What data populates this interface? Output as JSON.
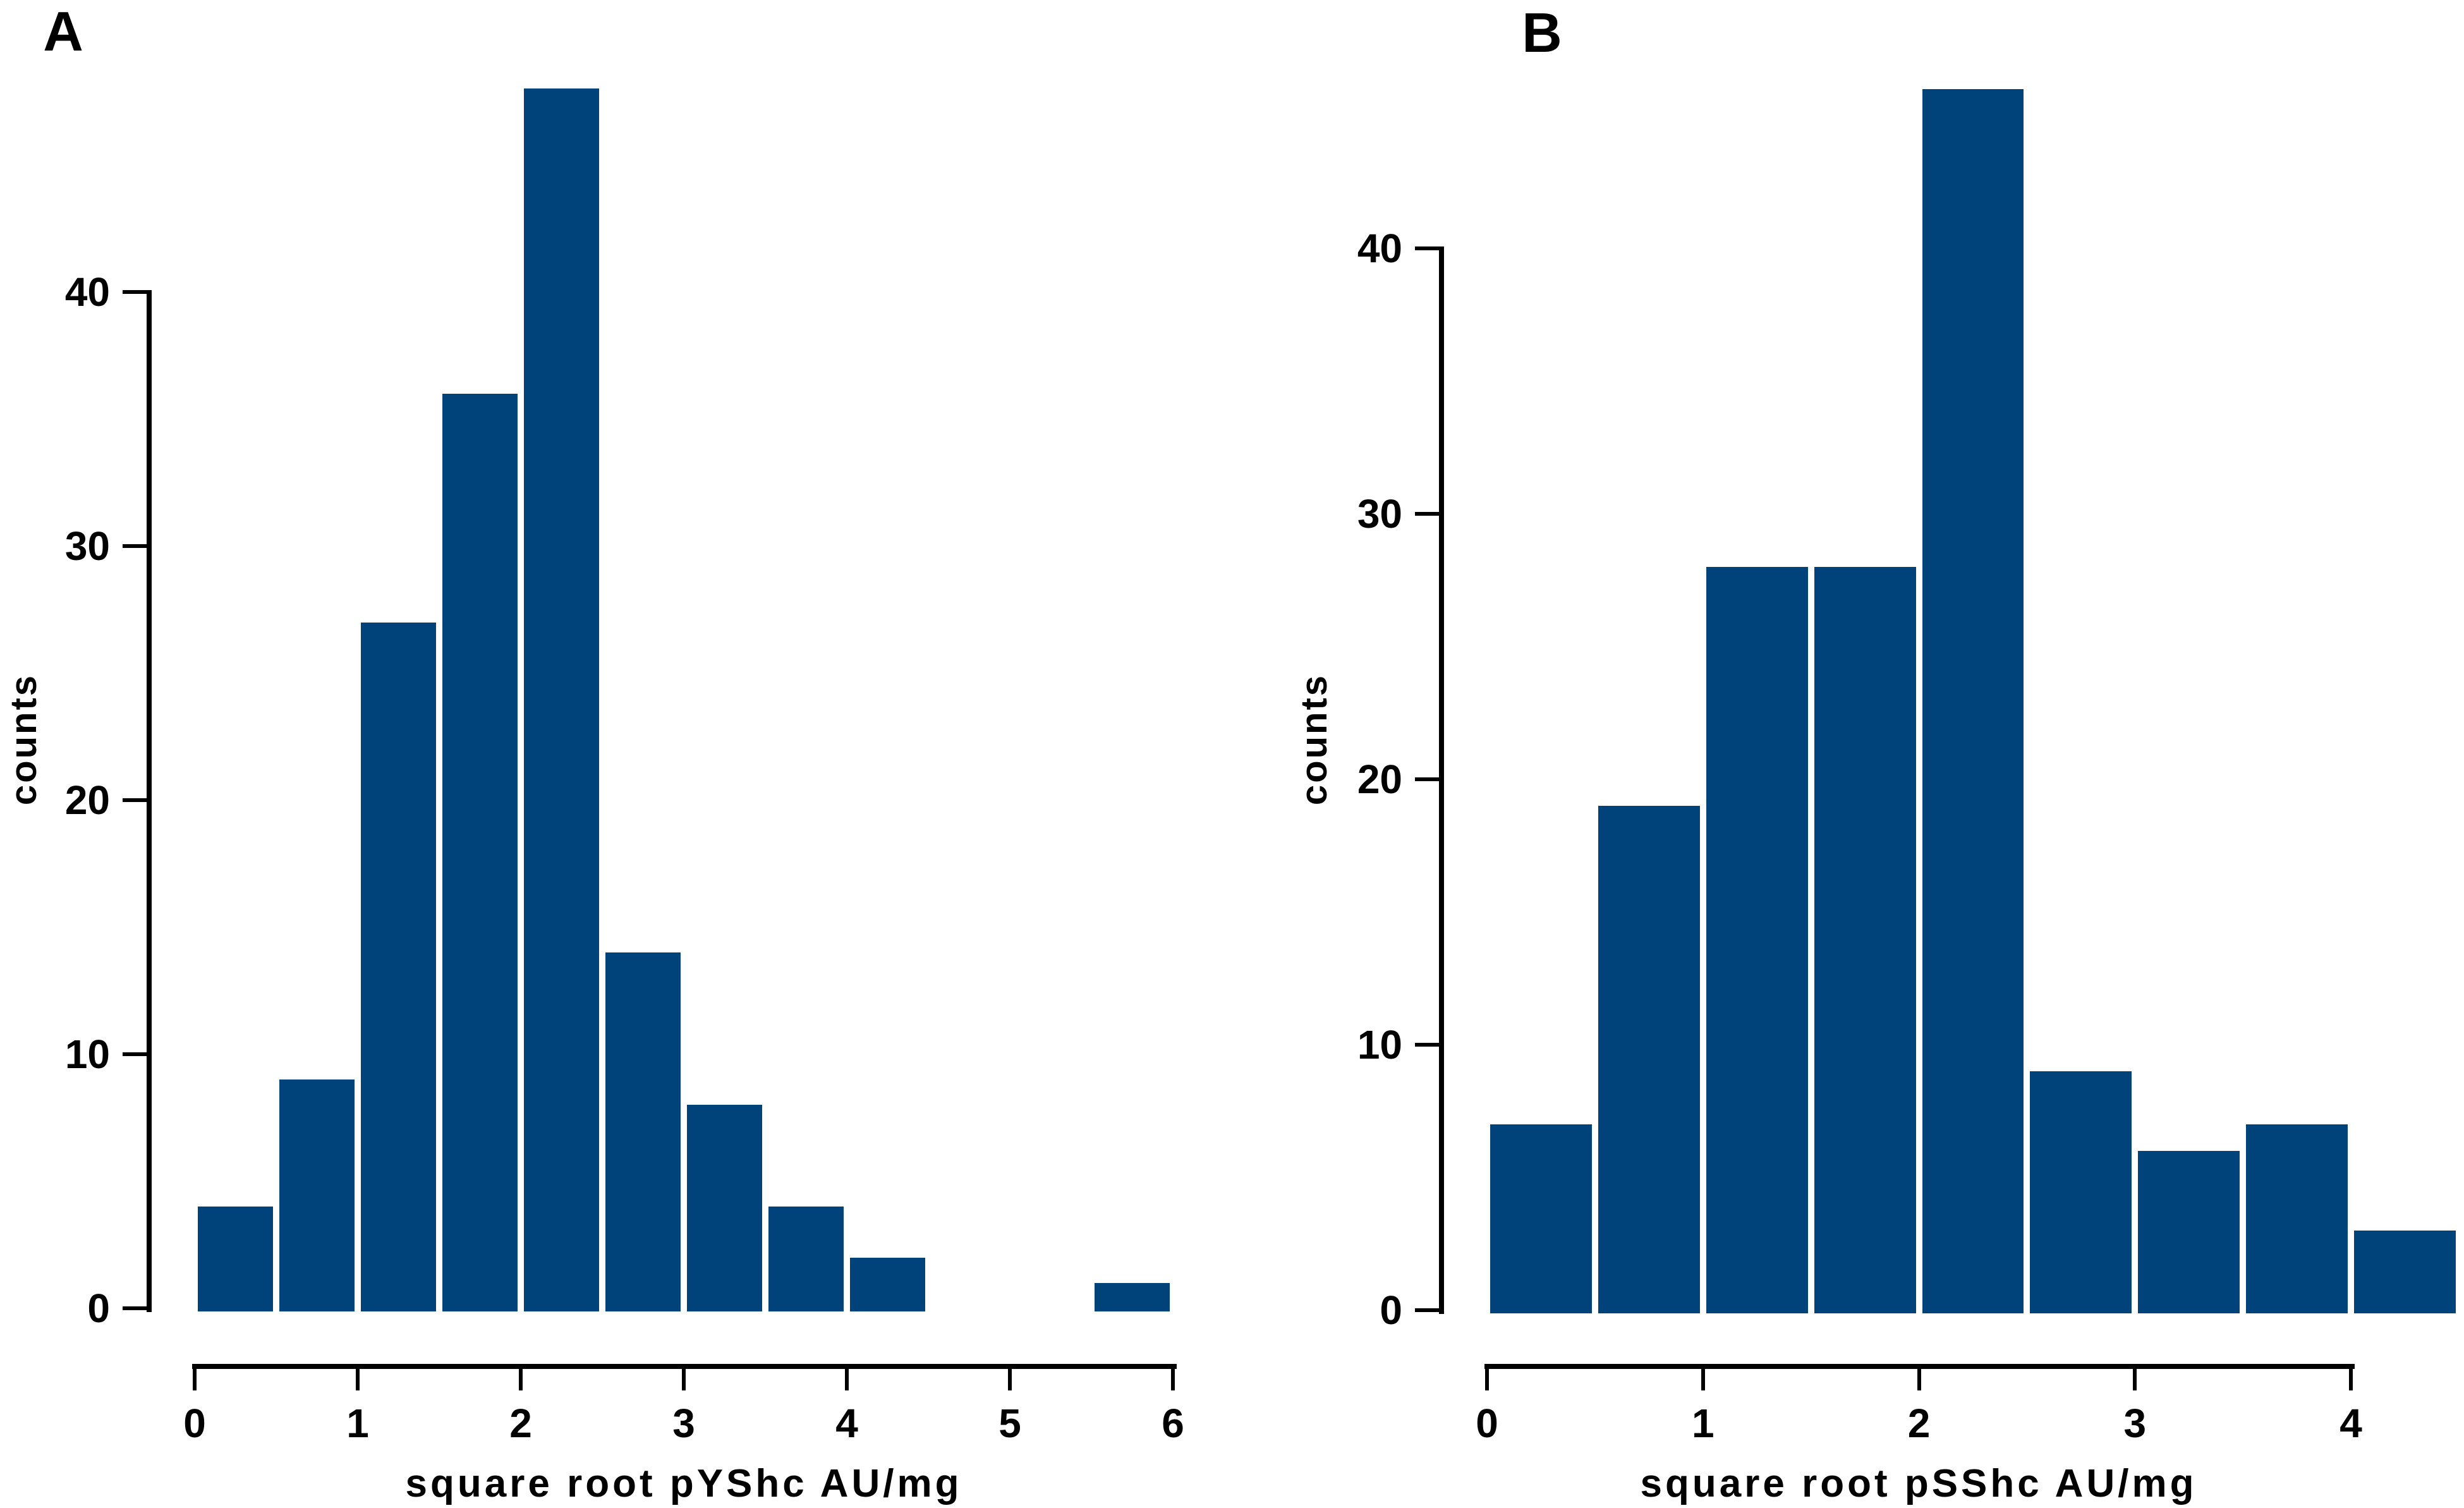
{
  "figure": {
    "background": "#ffffff",
    "text_color": "#000000"
  },
  "chart_data": [
    {
      "type": "bar",
      "subtype": "histogram",
      "panel_label": "A",
      "title": "",
      "xlabel": "square root pYShc AU/mg",
      "ylabel": "counts",
      "bin_start": 0,
      "bin_width": 0.5,
      "bin_edges": [
        0,
        0.5,
        1,
        1.5,
        2,
        2.5,
        3,
        3.5,
        4,
        4.5,
        5,
        5.5,
        6
      ],
      "counts": [
        4,
        9,
        27,
        36,
        48,
        14,
        8,
        4,
        2,
        0,
        0,
        1
      ],
      "x_ticks": [
        0,
        1,
        2,
        3,
        4,
        5,
        6
      ],
      "y_ticks": [
        0,
        10,
        20,
        30,
        40
      ],
      "xlim": [
        0,
        6
      ],
      "ylim": [
        0,
        48
      ],
      "grid": false,
      "legend": "none",
      "bar_color": "#00437a",
      "axis_color": "#000000"
    },
    {
      "type": "bar",
      "subtype": "histogram",
      "panel_label": "B",
      "title": "",
      "xlabel": "square root pSShc AU/mg",
      "ylabel": "counts",
      "bin_start": 0,
      "bin_width": 0.5,
      "bin_edges": [
        0,
        0.5,
        1,
        1.5,
        2,
        2.5,
        3,
        3.5,
        4,
        4.5
      ],
      "counts": [
        7,
        19,
        28,
        28,
        46,
        9,
        6,
        7,
        3
      ],
      "x_ticks": [
        0,
        1,
        2,
        3,
        4
      ],
      "y_ticks": [
        0,
        10,
        20,
        30,
        40
      ],
      "xlim": [
        0,
        4.5
      ],
      "ylim": [
        0,
        46
      ],
      "grid": false,
      "legend": "none",
      "bar_color": "#00437a",
      "axis_color": "#000000"
    }
  ]
}
